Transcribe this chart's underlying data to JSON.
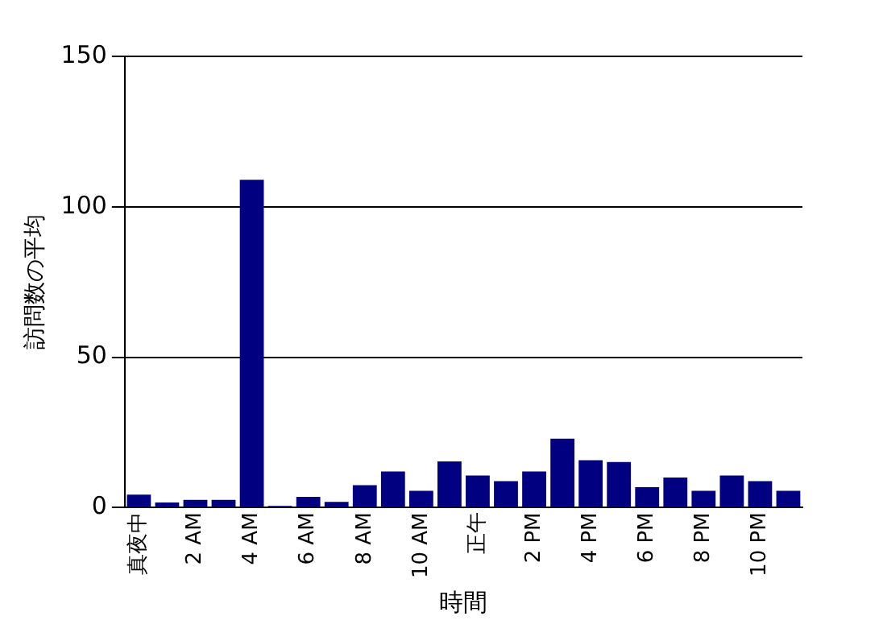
{
  "chart_data": {
    "type": "bar",
    "xlabel": "時間",
    "ylabel": "訪問数の平均",
    "categories": [
      "真夜中",
      null,
      "2 AM",
      null,
      "4 AM",
      null,
      "6 AM",
      null,
      "8 AM",
      null,
      "10 AM",
      null,
      "正午",
      null,
      "2 PM",
      null,
      "4 PM",
      null,
      "6 PM",
      null,
      "8 PM",
      null,
      "10 PM",
      null
    ],
    "values": [
      4.3,
      1.7,
      2.6,
      2.6,
      109,
      0.6,
      3.6,
      1.9,
      7.5,
      12,
      5.6,
      15.4,
      10.7,
      8.8,
      12,
      22.9,
      15.8,
      15.2,
      6.8,
      10,
      5.6,
      10.7,
      8.8,
      5.6
    ],
    "color": "#000080",
    "ylim": [
      0,
      150
    ],
    "yticks": [
      0,
      50,
      100,
      150
    ],
    "grid": "y",
    "legend": false
  }
}
